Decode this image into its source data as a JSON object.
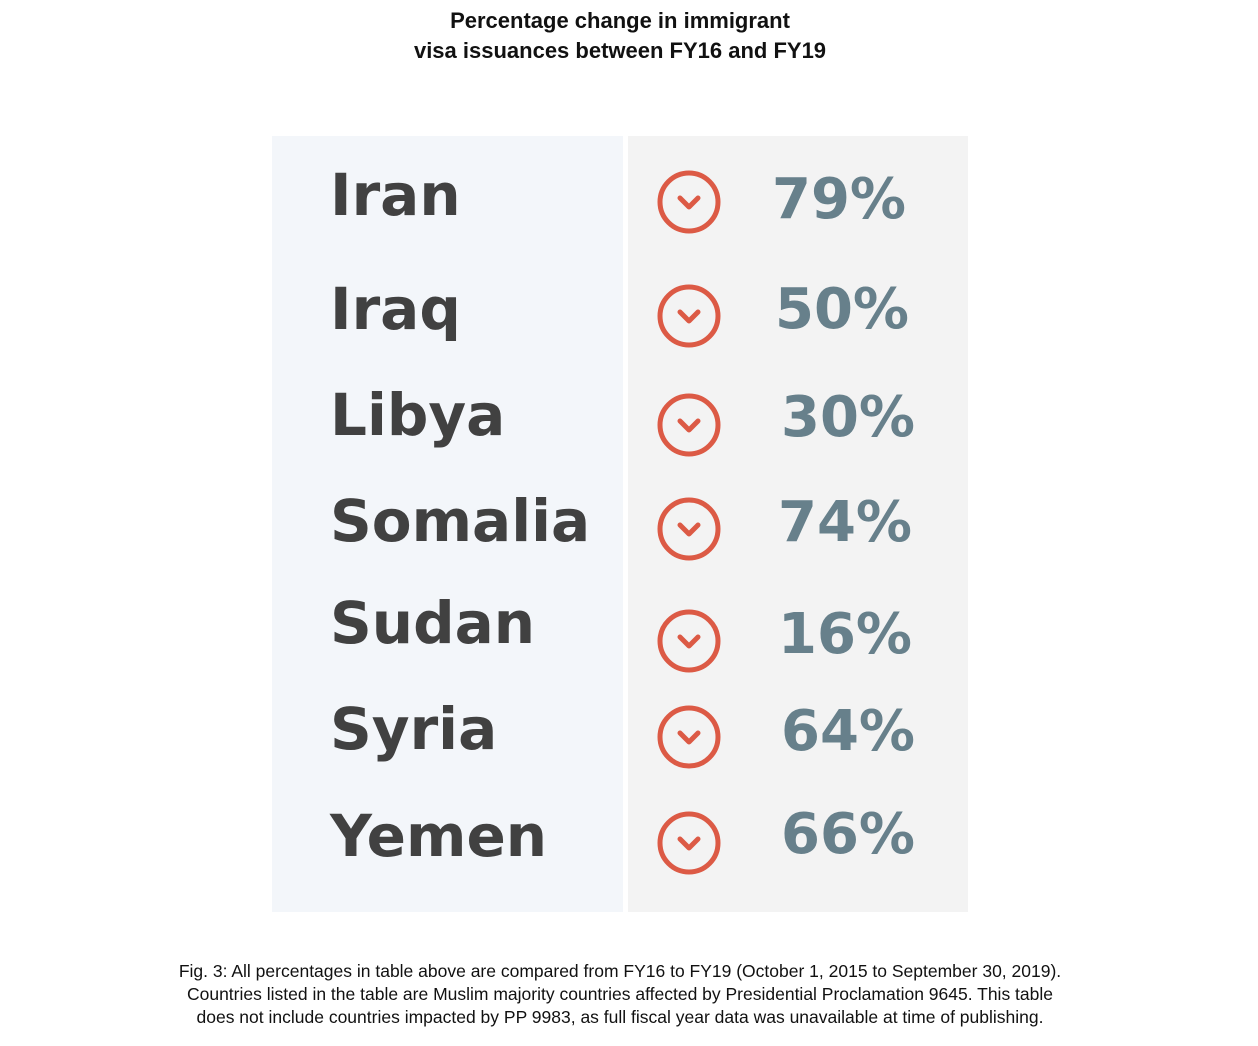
{
  "title": {
    "line1": "Percentage change in immigrant",
    "line2": "visa issuances between FY16 and FY19"
  },
  "colors": {
    "country_text": "#414141",
    "percent_text": "#67808b",
    "arrow_red": "#dc5a45",
    "left_panel_bg": "#f3f6fa",
    "right_panel_bg": "#f3f3f3"
  },
  "chart_data": {
    "type": "table",
    "direction_icon": "chevron-down-circle-icon",
    "columns": [
      "country",
      "percent_change"
    ],
    "rows": [
      {
        "country": "Iran",
        "percent": "79%",
        "value": 79,
        "direction": "down"
      },
      {
        "country": "Iraq",
        "percent": "50%",
        "value": 50,
        "direction": "down"
      },
      {
        "country": "Libya",
        "percent": "30%",
        "value": 30,
        "direction": "down"
      },
      {
        "country": "Somalia",
        "percent": "74%",
        "value": 74,
        "direction": "down"
      },
      {
        "country": "Sudan",
        "percent": "16%",
        "value": 16,
        "direction": "down"
      },
      {
        "country": "Syria",
        "percent": "64%",
        "value": 64,
        "direction": "down"
      },
      {
        "country": "Yemen",
        "percent": "66%",
        "value": 66,
        "direction": "down"
      }
    ]
  },
  "caption": {
    "line1": "Fig. 3: All percentages in table above are compared from FY16 to FY19 (October 1, 2015 to September 30, 2019).",
    "line2": "Countries listed in the table are Muslim majority countries affected by Presidential Proclamation 9645. This table",
    "line3": "does not include countries impacted by PP 9983, as full fiscal year data was unavailable at time of publishing."
  }
}
